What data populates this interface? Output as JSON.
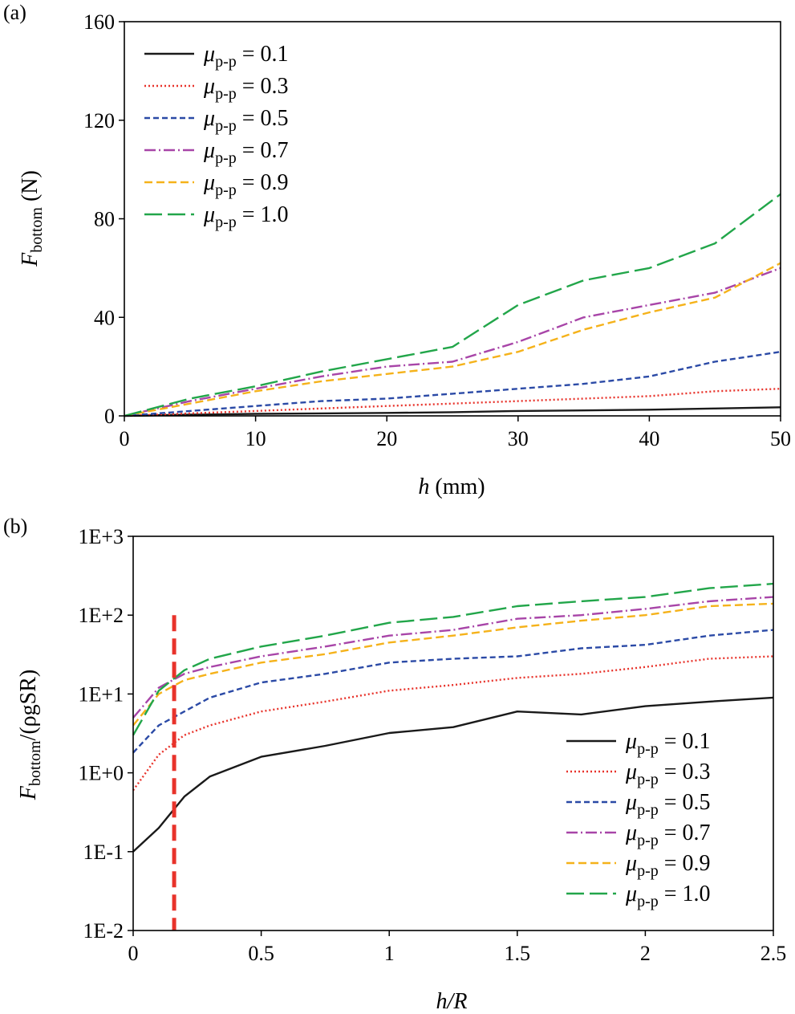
{
  "chart_data": [
    {
      "panel_label": "(a)",
      "type": "line",
      "title": "",
      "xlabel_main": "h",
      "xlabel_rest": " (mm)",
      "ylabel_main": "F",
      "ylabel_sub": "bottom",
      "ylabel_rest": " (N)",
      "xlim": [
        0,
        50
      ],
      "ylim": [
        0,
        160
      ],
      "xticks": [
        0,
        10,
        20,
        30,
        40,
        50
      ],
      "yticks": [
        0,
        40,
        80,
        120,
        160
      ],
      "xtick_labels": [
        "0",
        "10",
        "20",
        "30",
        "40",
        "50"
      ],
      "ytick_labels": [
        "0",
        "40",
        "80",
        "120",
        "160"
      ],
      "grid": false,
      "legend_position": "top-left",
      "series": [
        {
          "name": "μp-p = 0.1",
          "mu": "μ",
          "sub": "p-p",
          "value_label": " = 0.1",
          "color": "#1a1a1a",
          "dash": "",
          "x": [
            0,
            5,
            10,
            15,
            20,
            25,
            30,
            35,
            40,
            45,
            50
          ],
          "values": [
            0,
            0.5,
            0.8,
            1,
            1.2,
            1.5,
            2,
            2.2,
            2.5,
            3,
            3.5
          ]
        },
        {
          "name": "μp-p = 0.3",
          "mu": "μ",
          "sub": "p-p",
          "value_label": " = 0.3",
          "color": "#e8332b",
          "dash": "2,3",
          "x": [
            0,
            5,
            10,
            15,
            20,
            25,
            30,
            35,
            40,
            45,
            50
          ],
          "values": [
            0,
            1,
            2,
            3,
            4,
            5,
            6,
            7,
            8,
            10,
            11
          ]
        },
        {
          "name": "μp-p = 0.5",
          "mu": "μ",
          "sub": "p-p",
          "value_label": " = 0.5",
          "color": "#2b4aa6",
          "dash": "7,4",
          "x": [
            0,
            5,
            10,
            15,
            20,
            25,
            30,
            35,
            40,
            45,
            50
          ],
          "values": [
            0,
            2,
            4,
            6,
            7,
            9,
            11,
            13,
            16,
            22,
            26
          ]
        },
        {
          "name": "μp-p = 0.7",
          "mu": "μ",
          "sub": "p-p",
          "value_label": " = 0.7",
          "color": "#a845a8",
          "dash": "14,4,2,4",
          "x": [
            0,
            5,
            10,
            15,
            20,
            25,
            30,
            35,
            40,
            45,
            50
          ],
          "values": [
            0,
            6,
            11,
            16,
            20,
            22,
            30,
            40,
            45,
            50,
            60
          ]
        },
        {
          "name": "μp-p = 0.9",
          "mu": "μ",
          "sub": "p-p",
          "value_label": " = 0.9",
          "color": "#f5b21a",
          "dash": "10,5",
          "x": [
            0,
            5,
            10,
            15,
            20,
            25,
            30,
            35,
            40,
            45,
            50
          ],
          "values": [
            0,
            5,
            10,
            14,
            17,
            20,
            26,
            35,
            42,
            48,
            62
          ]
        },
        {
          "name": "μp-p = 1.0",
          "mu": "μ",
          "sub": "p-p",
          "value_label": " = 1.0",
          "color": "#22a64a",
          "dash": "22,7",
          "x": [
            0,
            5,
            10,
            15,
            20,
            25,
            30,
            35,
            40,
            45,
            50
          ],
          "values": [
            0,
            7,
            12,
            18,
            23,
            28,
            45,
            55,
            60,
            70,
            90
          ]
        }
      ]
    },
    {
      "panel_label": "(b)",
      "type": "line",
      "yscale": "log",
      "title": "",
      "xlabel_main": "h",
      "xlabel_rest": "/R",
      "ylabel_main": "F",
      "ylabel_sub": "bottom",
      "ylabel_rest": "/(ρgSR)",
      "xlim": [
        0,
        2.5
      ],
      "ylim": [
        0.01,
        1000
      ],
      "xticks": [
        0,
        0.5,
        1,
        1.5,
        2,
        2.5
      ],
      "yticks": [
        0.01,
        0.1,
        1,
        10,
        100,
        1000
      ],
      "xtick_labels": [
        "0",
        "0.5",
        "1",
        "1.5",
        "2",
        "2.5"
      ],
      "ytick_labels": [
        "1E-2",
        "1E-1",
        "1E+0",
        "1E+1",
        "1E+2",
        "1E+3"
      ],
      "grid": false,
      "legend_position": "bottom-right",
      "reference_line": {
        "x": 0.16,
        "y_range": [
          0.01,
          100
        ],
        "color": "#e8332b",
        "style": "dashed"
      },
      "series": [
        {
          "name": "μp-p = 0.1",
          "mu": "μ",
          "sub": "p-p",
          "value_label": " = 0.1",
          "color": "#1a1a1a",
          "dash": "",
          "x": [
            0,
            0.1,
            0.2,
            0.3,
            0.5,
            0.75,
            1,
            1.25,
            1.5,
            1.75,
            2,
            2.25,
            2.5
          ],
          "values": [
            0.1,
            0.2,
            0.5,
            0.9,
            1.6,
            2.2,
            3.2,
            3.8,
            6,
            5.5,
            7,
            8,
            9
          ]
        },
        {
          "name": "μp-p = 0.3",
          "mu": "μ",
          "sub": "p-p",
          "value_label": " = 0.3",
          "color": "#e8332b",
          "dash": "2,3",
          "x": [
            0,
            0.1,
            0.2,
            0.3,
            0.5,
            0.75,
            1,
            1.25,
            1.5,
            1.75,
            2,
            2.25,
            2.5
          ],
          "values": [
            0.6,
            1.7,
            3,
            4,
            6,
            8,
            11,
            13,
            16,
            18,
            22,
            28,
            30
          ]
        },
        {
          "name": "μp-p = 0.5",
          "mu": "μ",
          "sub": "p-p",
          "value_label": " = 0.5",
          "color": "#2b4aa6",
          "dash": "7,4",
          "x": [
            0,
            0.1,
            0.2,
            0.3,
            0.5,
            0.75,
            1,
            1.25,
            1.5,
            1.75,
            2,
            2.25,
            2.5
          ],
          "values": [
            1.8,
            4,
            6,
            9,
            14,
            18,
            25,
            28,
            30,
            38,
            42,
            55,
            65
          ]
        },
        {
          "name": "μp-p = 0.7",
          "mu": "μ",
          "sub": "p-p",
          "value_label": " = 0.7",
          "color": "#a845a8",
          "dash": "14,4,2,4",
          "x": [
            0,
            0.1,
            0.2,
            0.3,
            0.5,
            0.75,
            1,
            1.25,
            1.5,
            1.75,
            2,
            2.25,
            2.5
          ],
          "values": [
            5,
            12,
            18,
            22,
            30,
            40,
            55,
            65,
            90,
            100,
            120,
            150,
            170
          ]
        },
        {
          "name": "μp-p = 0.9",
          "mu": "μ",
          "sub": "p-p",
          "value_label": " = 0.9",
          "color": "#f5b21a",
          "dash": "10,5",
          "x": [
            0,
            0.1,
            0.2,
            0.3,
            0.5,
            0.75,
            1,
            1.25,
            1.5,
            1.75,
            2,
            2.25,
            2.5
          ],
          "values": [
            4,
            10,
            15,
            18,
            25,
            32,
            45,
            55,
            70,
            85,
            100,
            130,
            140
          ]
        },
        {
          "name": "μp-p = 1.0",
          "mu": "μ",
          "sub": "p-p",
          "value_label": " = 1.0",
          "color": "#22a64a",
          "dash": "22,7",
          "x": [
            0,
            0.1,
            0.2,
            0.3,
            0.5,
            0.75,
            1,
            1.25,
            1.5,
            1.75,
            2,
            2.25,
            2.5
          ],
          "values": [
            3,
            11,
            20,
            28,
            40,
            55,
            80,
            95,
            130,
            150,
            170,
            220,
            250
          ]
        }
      ]
    }
  ]
}
